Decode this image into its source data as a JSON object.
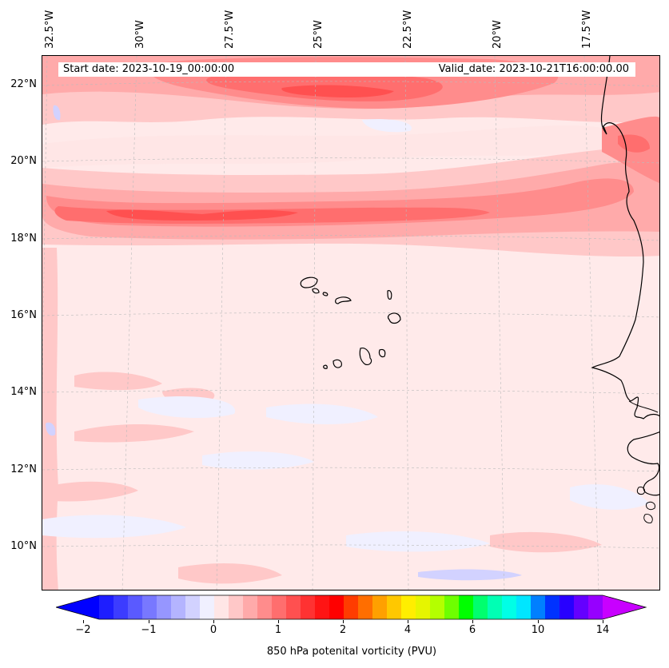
{
  "header": {
    "start_date": "Start date: 2023-10-19_00:00:00",
    "valid_date": "Valid_date: 2023-10-21T16:00:00.00"
  },
  "axes": {
    "longitude_labels": [
      "32.5°W",
      "30°W",
      "27.5°W",
      "25°W",
      "22.5°W",
      "20°W",
      "17.5°W"
    ],
    "latitude_labels": [
      "22°N",
      "20°N",
      "18°N",
      "16°N",
      "14°N",
      "12°N",
      "10°N"
    ]
  },
  "colorbar": {
    "title": "850 hPa potenital vorticity (PVU)",
    "tick_labels": [
      "−2",
      "−1",
      "0",
      "1",
      "2",
      "4",
      "6",
      "10",
      "14"
    ],
    "colors": [
      "#1e1eff",
      "#3c3cff",
      "#5a5aff",
      "#7878ff",
      "#9696ff",
      "#b4b4ff",
      "#d2d2ff",
      "#f0f0ff",
      "#ffe6e6",
      "#ffc8c8",
      "#ffaaaa",
      "#ff8c8c",
      "#ff6e6e",
      "#ff5050",
      "#ff3232",
      "#ff1414",
      "#ff0000",
      "#ff3c00",
      "#ff6e00",
      "#ffa000",
      "#ffc800",
      "#ffee00",
      "#e6f500",
      "#b4ff00",
      "#6eff00",
      "#00ff00",
      "#00ff6e",
      "#00ffb4",
      "#00ffe6",
      "#00e6ff",
      "#0080ff",
      "#0032ff",
      "#2800ff",
      "#6400ff",
      "#9600ff"
    ],
    "extend_low_color": "#0000ff",
    "extend_high_color": "#c800ff"
  }
}
